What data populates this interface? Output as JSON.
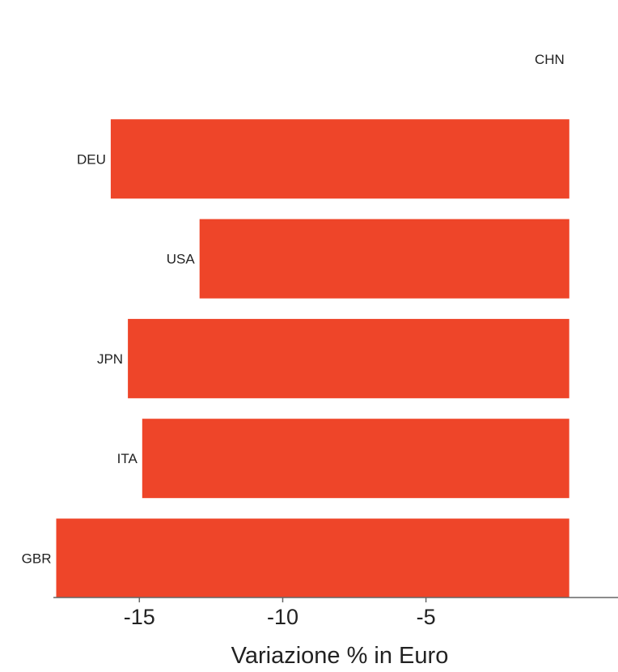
{
  "chart_data": {
    "type": "bar",
    "orientation": "horizontal",
    "categories": [
      "CHN",
      "DEU",
      "USA",
      "JPN",
      "ITA",
      "GBR"
    ],
    "values": [
      0,
      -16.0,
      -12.9,
      -15.4,
      -14.9,
      -17.9
    ],
    "x_ticks": [
      -15,
      -10,
      -5
    ],
    "tick_labels": [
      "-15",
      "-10",
      "-5"
    ],
    "xlabel": "Variazione % in Euro",
    "xlim": [
      -18,
      1.7
    ],
    "grid": false,
    "legend": "none",
    "colors": {
      "bar": "#ee4529",
      "axis": "#666666",
      "text": "#222222"
    }
  }
}
